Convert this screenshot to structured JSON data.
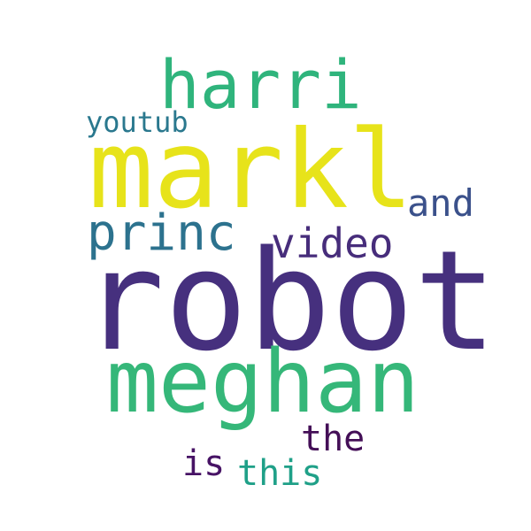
{
  "words": [
    {
      "key": "robot",
      "text": "robot",
      "color": "#46307e"
    },
    {
      "key": "markl",
      "text": "markl",
      "color": "#e7e31a"
    },
    {
      "key": "meghan",
      "text": "meghan",
      "color": "#35b779"
    },
    {
      "key": "harri",
      "text": "harri",
      "color": "#2fb47c"
    },
    {
      "key": "princ",
      "text": "princ",
      "color": "#2c728e"
    },
    {
      "key": "video",
      "text": "video",
      "color": "#472d7b"
    },
    {
      "key": "and",
      "text": "and",
      "color": "#3b518b"
    },
    {
      "key": "youtub",
      "text": "youtub",
      "color": "#2a788e"
    },
    {
      "key": "the",
      "text": "the",
      "color": "#440f57"
    },
    {
      "key": "is",
      "text": "is",
      "color": "#471365"
    },
    {
      "key": "this",
      "text": "this",
      "color": "#1fa088"
    }
  ]
}
